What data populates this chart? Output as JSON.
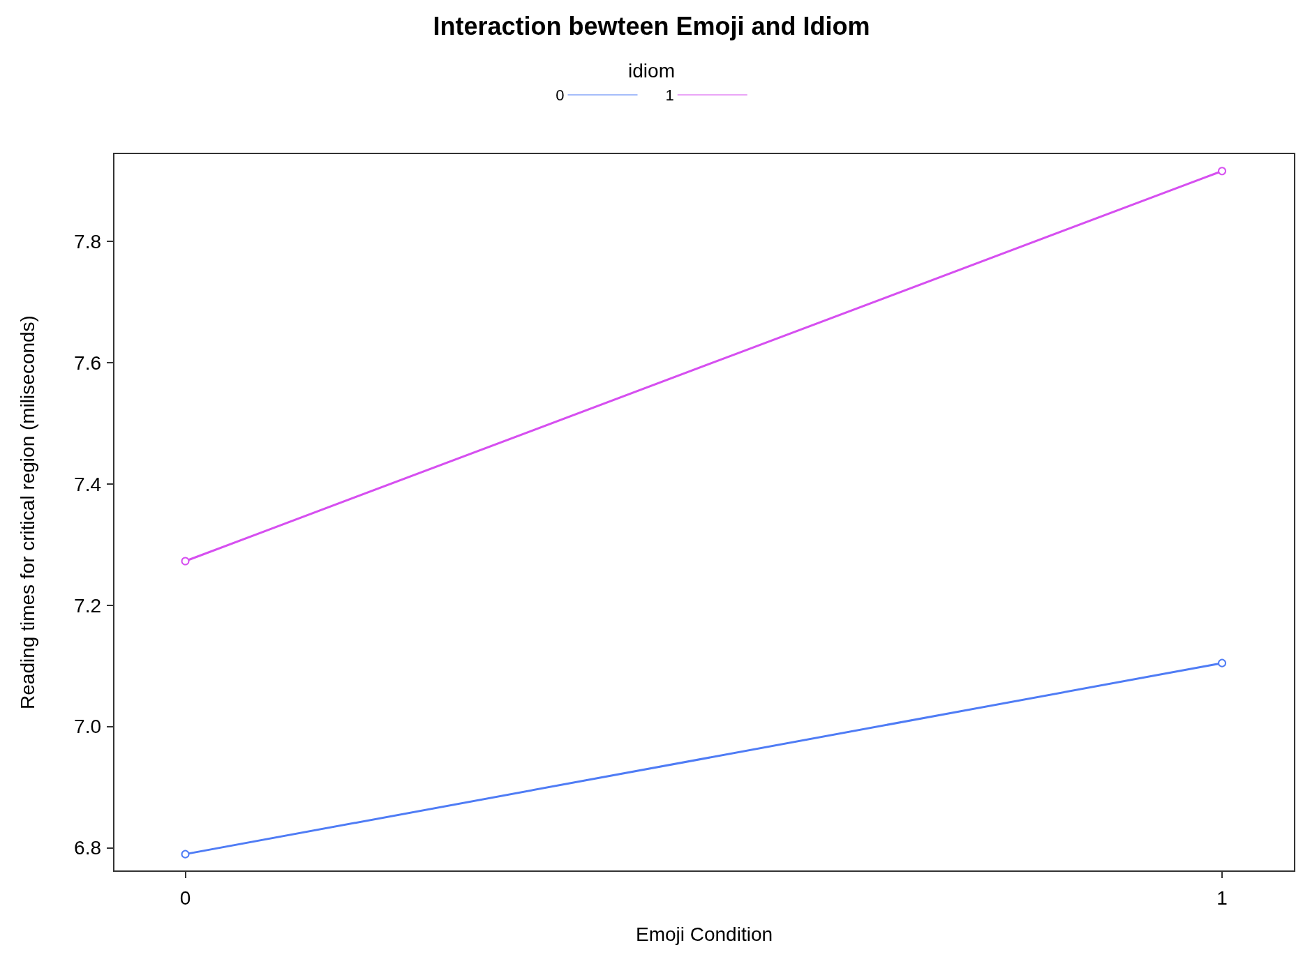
{
  "chart_data": {
    "type": "line",
    "title": "Interaction bewteen Emoji and Idiom",
    "legend_title": "idiom",
    "xlabel": "Emoji Condition",
    "ylabel": "Reading times for critical region (miliseconds)",
    "x": [
      0,
      1
    ],
    "series": [
      {
        "name": "0",
        "color": "#4f7cf5",
        "values": [
          6.79,
          7.105
        ]
      },
      {
        "name": "1",
        "color": "#d64ff0",
        "values": [
          7.273,
          7.916
        ]
      }
    ],
    "xlim": [
      -0.069,
      1.07
    ],
    "xticks": [
      0,
      1
    ],
    "ylim": [
      6.762,
      7.945
    ],
    "yticks": [
      6.8,
      {
        "value": 7,
        "label": "7.0"
      },
      7.2,
      7.4,
      7.6,
      7.8
    ],
    "grid": false,
    "legend": "top",
    "marker": "circle",
    "line_style": "solid"
  }
}
